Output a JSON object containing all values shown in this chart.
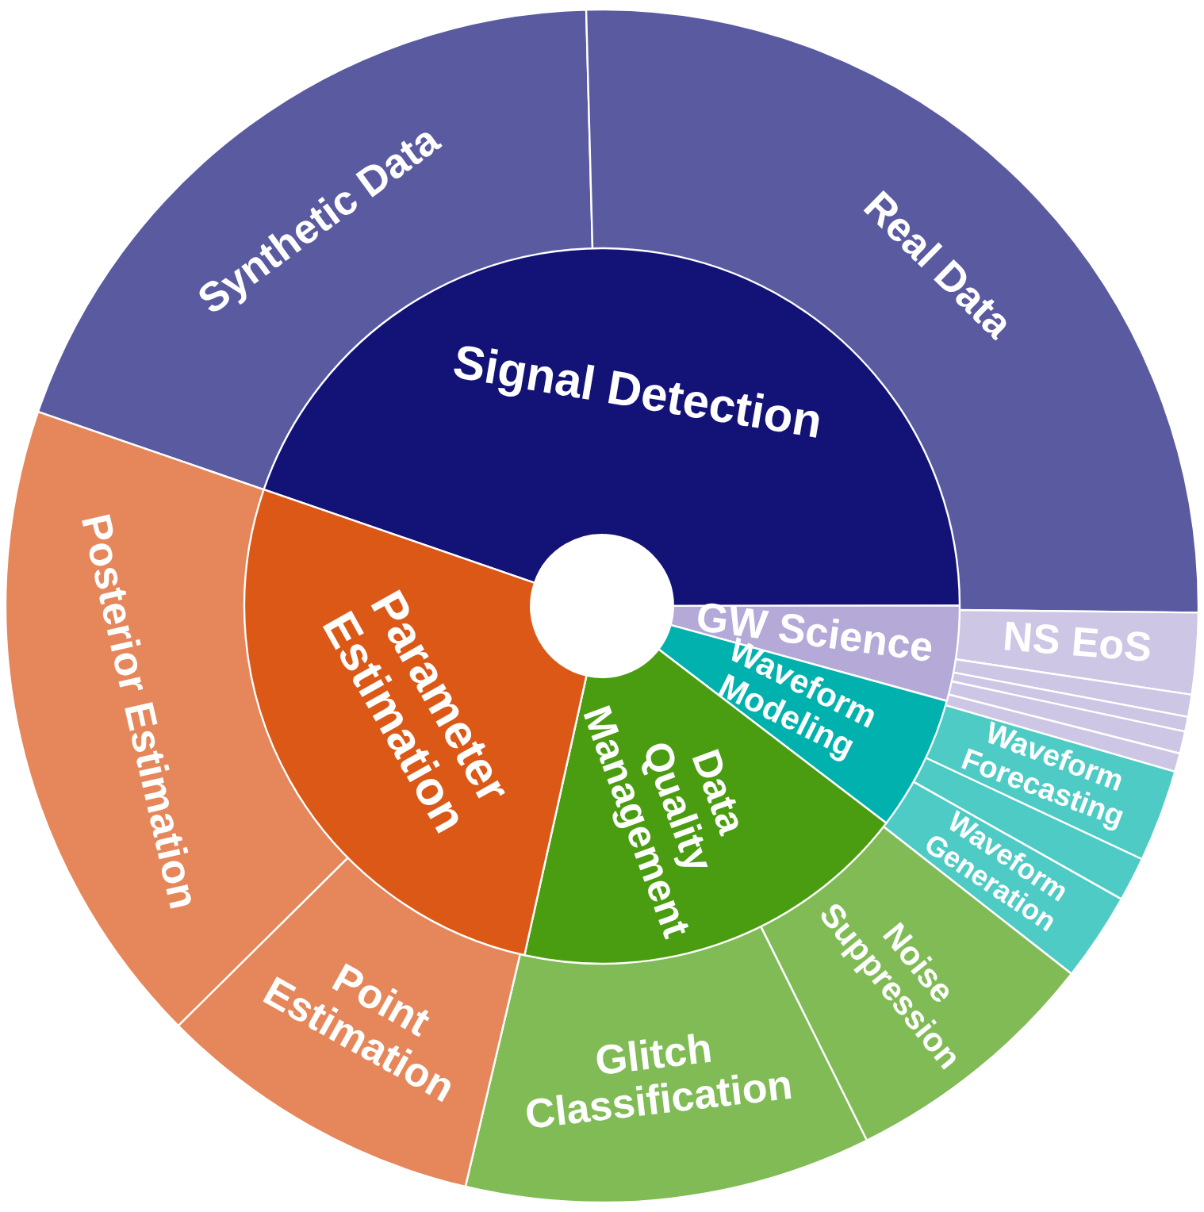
{
  "chart_data": [
    {
      "type": "donut",
      "legend": false,
      "categories": [
        "Signal Detection",
        "GW Science",
        "Waveform Modeling",
        "Data Quality Management",
        "Parameter Estimation"
      ],
      "values": [
        44.7,
        4.3,
        6.1,
        18.1,
        26.8
      ],
      "colors": [
        "#131377",
        "#b4a9d7",
        "#00b1ad",
        "#4a9d11",
        "#dc5816"
      ]
    },
    {
      "type": "donut",
      "legend": false,
      "categories": [
        "Synthetic Data",
        "Real Data",
        "NS EoS",
        null,
        null,
        null,
        null,
        "Waveform Forecasting",
        null,
        "Waveform Generation",
        "Noise Suppression",
        "Glitch Classification",
        "Point Estimation",
        "Posterior Estimation"
      ],
      "values": [
        19.3,
        25.6,
        2.2,
        0.6,
        0.4,
        0.6,
        0.5,
        2.5,
        1.2,
        2.4,
        7.1,
        11.0,
        8.9,
        17.7
      ],
      "colors": [
        "#5a5aa0",
        "#5a5aa0",
        "#cdc6e5",
        "#cdc6e5",
        "#cdc6e5",
        "#cdc6e5",
        "#cdc6e5",
        "#4ecbc5",
        "#4ecbc5",
        "#4ecbc5",
        "#80bb56",
        "#80bb56",
        "#e5875a",
        "#e5875a"
      ]
    }
  ]
}
